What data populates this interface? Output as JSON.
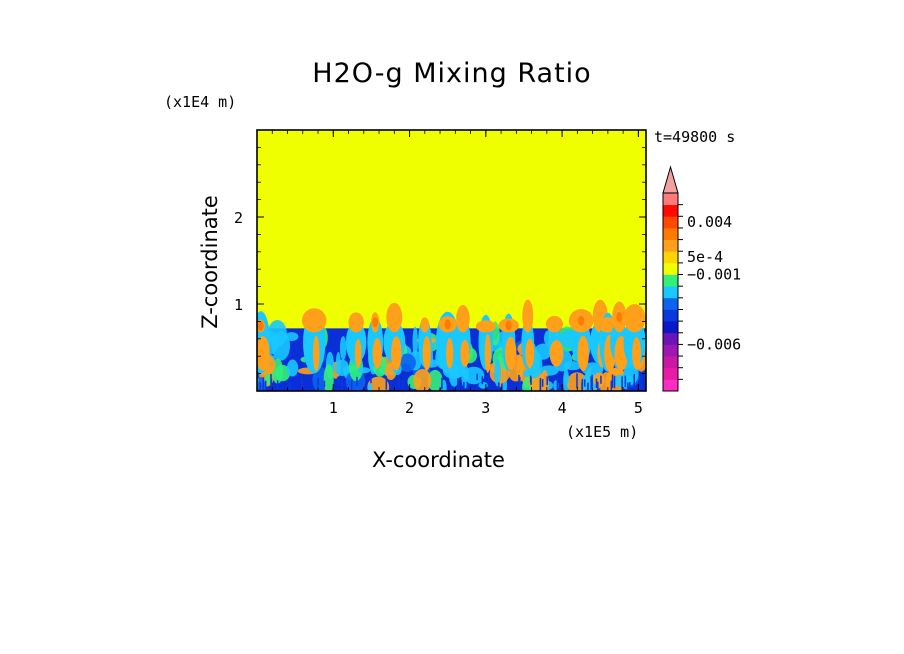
{
  "chart_data": {
    "type": "heatmap",
    "title": "H2O-g Mixing Ratio",
    "xlabel": "X-coordinate",
    "ylabel": "Z-coordinate",
    "x_unit": "(x1E5 m)",
    "y_unit": "(x1E4 m)",
    "time_label": "t=49800 s",
    "xlim": [
      0,
      5.1
    ],
    "ylim": [
      0,
      3.0
    ],
    "x_ticks": [
      1,
      2,
      3,
      4,
      5
    ],
    "x_tick_labels": [
      "1",
      "2",
      "3",
      "4",
      "5"
    ],
    "y_ticks": [
      1,
      2
    ],
    "y_tick_labels": [
      "1",
      "2"
    ],
    "colorbar": {
      "levels": [
        {
          "color": "#ff2bc5"
        },
        {
          "color": "#e81ba6"
        },
        {
          "color": "#c818a4"
        },
        {
          "color": "#9d18b2"
        },
        {
          "color": "#6b15b8"
        },
        {
          "color": "#0b18c9"
        },
        {
          "color": "#0838de"
        },
        {
          "color": "#0b64f0"
        },
        {
          "color": "#18c8ff"
        },
        {
          "color": "#32f07a"
        },
        {
          "color": "#f0ff00"
        },
        {
          "color": "#ffd400"
        },
        {
          "color": "#ffa01a"
        },
        {
          "color": "#ff7a00"
        },
        {
          "color": "#ff4800"
        },
        {
          "color": "#ff0a00"
        },
        {
          "color": "#ff7a7a"
        },
        {
          "color": "#f2a0a0"
        }
      ],
      "labels": [
        {
          "text": "0.004",
          "level": 14.5
        },
        {
          "text": "5e-4",
          "level": 11.5
        },
        {
          "text": "−0.001",
          "level": 10
        },
        {
          "text": "−0.006",
          "level": 4
        }
      ]
    },
    "field": {
      "background_value_color": "#f0ff00",
      "boundary_layer_top": 0.72,
      "boundary_layer_color": "#0a2fd6"
    }
  }
}
